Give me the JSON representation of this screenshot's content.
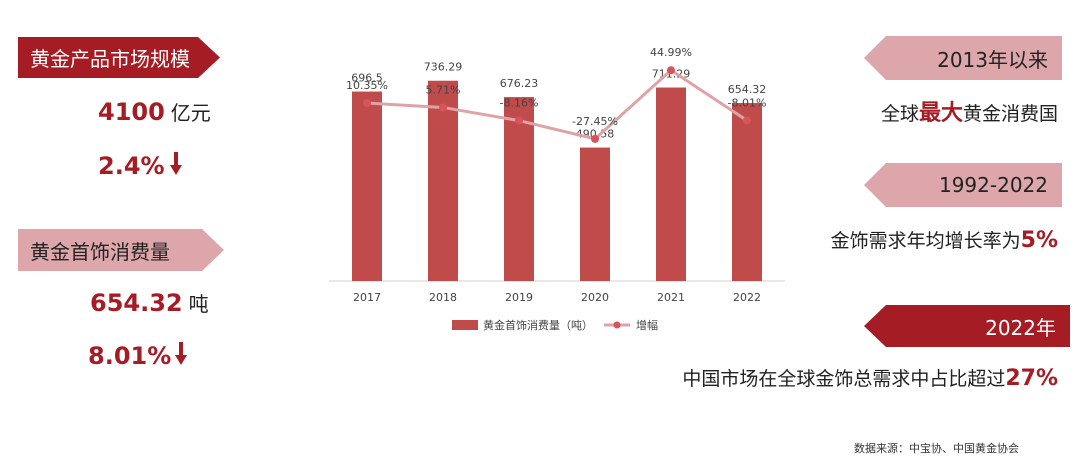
{
  "colors": {
    "dark_red": "#a61c24",
    "light_pink": "#dda6ab",
    "bar": "#c04b4b",
    "line": "#dea3a6",
    "point": "#d9535a"
  },
  "left": {
    "market_tag": "黄金产品市场规模",
    "market_value": "4100",
    "market_unit": "亿元",
    "market_change": "2.4%",
    "market_arrow_icon": "down-arrow-icon",
    "jewelry_tag": "黄金首饰消费量",
    "jewelry_value": "654.32",
    "jewelry_unit": "吨",
    "jewelry_change": "8.01%",
    "jewelry_arrow_icon": "down-arrow-icon"
  },
  "right": {
    "tag1": "2013年以来",
    "line1_pre": "全球",
    "line1_hl": "最大",
    "line1_post": "黄金消费国",
    "tag2": "1992-2022",
    "line2_pre": "金饰需求年均增长率为",
    "line2_hl": "5%",
    "tag3": "2022年",
    "line3_pre": "中国市场在全球金饰总需求中占比超过",
    "line3_hl": "27%"
  },
  "source": "数据来源：中宝协、中国黄金协会",
  "chart_data": {
    "type": "bar",
    "categories": [
      "2017",
      "2018",
      "2019",
      "2020",
      "2021",
      "2022"
    ],
    "series": [
      {
        "name": "黄金首饰消费量（吨）",
        "type": "bar",
        "values": [
          696.5,
          736.29,
          676.23,
          490.58,
          711.29,
          654.32
        ],
        "labels": [
          "696.5",
          "736.29",
          "676.23",
          "490.58",
          "711.29",
          "654.32"
        ]
      },
      {
        "name": "增幅",
        "type": "line",
        "values": [
          10.35,
          5.71,
          -8.16,
          -27.45,
          44.99,
          -8.01
        ],
        "labels": [
          "10.35%",
          "5.71%",
          "-8.16%",
          "-27.45%",
          "44.99%",
          "-8.01%"
        ]
      }
    ],
    "ylim_bar": [
      0,
      1000
    ],
    "ylim_line": [
      -150,
      60
    ],
    "legend": "bottom",
    "grid": false
  }
}
